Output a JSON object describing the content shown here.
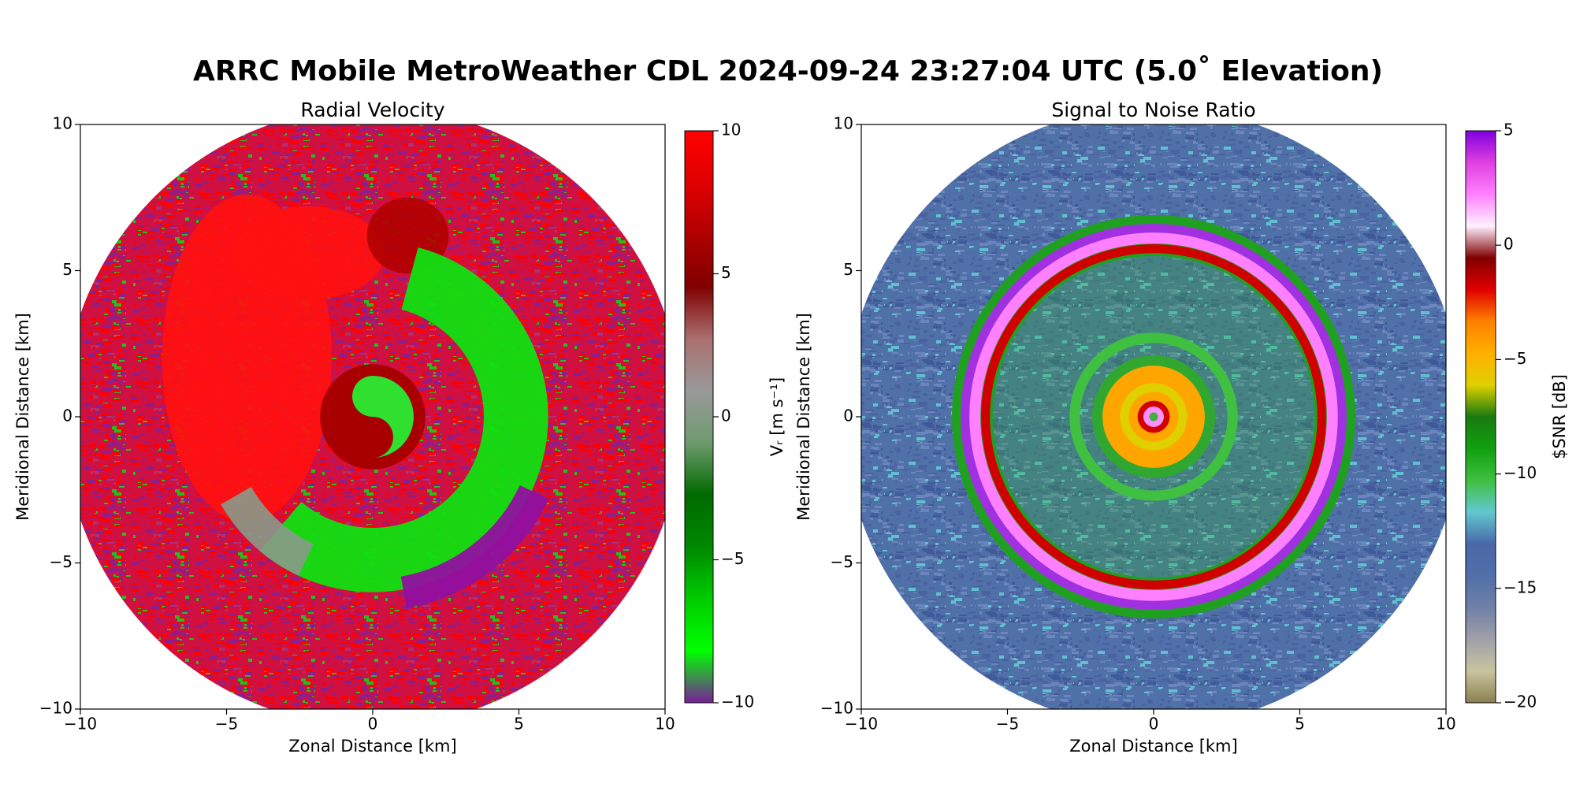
{
  "title": "ARRC Mobile MetroWeather CDL 2024-09-24 23:27:04 UTC (5.0˚ Elevation)",
  "chart_data": [
    {
      "type": "heatmap",
      "title": "Radial Velocity",
      "xlabel": "Zonal Distance [km]",
      "ylabel": "Meridional Distance [km]",
      "xlim": [
        -10,
        10
      ],
      "ylim": [
        -10,
        10
      ],
      "xticks": [
        {
          "value": -10,
          "label": "−10"
        },
        {
          "value": -5,
          "label": "−5"
        },
        0,
        5,
        10
      ],
      "yticks": [
        {
          "value": -10,
          "label": "−10"
        },
        {
          "value": -5,
          "label": "−5"
        },
        0,
        5,
        10
      ],
      "colorbar": {
        "label": "Vᵣ [m s⁻¹]",
        "lim": [
          -10,
          10
        ],
        "ticks": [
          {
            "value": -10,
            "label": "−10"
          },
          {
            "value": -5,
            "label": "−5"
          },
          0,
          5,
          10
        ],
        "colors": [
          "#7a1f9a",
          "#00ff00",
          "#00cc00",
          "#008800",
          "#006a00",
          "#6f9a6f",
          "#999999",
          "#aa6f6f",
          "#800000",
          "#b00000",
          "#e00000",
          "#ff0000"
        ]
      }
    },
    {
      "type": "heatmap",
      "title": "Signal to Noise Ratio",
      "xlabel": "Zonal Distance [km]",
      "ylabel": "Meridional Distance [km]",
      "xlim": [
        -10,
        10
      ],
      "ylim": [
        -10,
        10
      ],
      "xticks": [
        {
          "value": -10,
          "label": "−10"
        },
        {
          "value": -5,
          "label": "−5"
        },
        0,
        5,
        10
      ],
      "yticks": [
        {
          "value": -10,
          "label": "−10"
        },
        {
          "value": -5,
          "label": "−5"
        },
        0,
        5,
        10
      ],
      "colorbar": {
        "label": "$SNR [dB]",
        "lim": [
          -20,
          5
        ],
        "ticks": [
          {
            "value": -20,
            "label": "−20"
          },
          {
            "value": -15,
            "label": "−15"
          },
          {
            "value": -10,
            "label": "−10"
          },
          {
            "value": -5,
            "label": "−5"
          },
          0,
          5
        ],
        "colors": [
          "#8a8050",
          "#c8c4a0",
          "#a0a0a8",
          "#7080a8",
          "#5070a8",
          "#4a68a8",
          "#60c8d0",
          "#40c040",
          "#10a010",
          "#1a7a10",
          "#e0d000",
          "#ffb000",
          "#ff8000",
          "#e00000",
          "#800000",
          "#fff0ff",
          "#ff80ff",
          "#e040e0",
          "#8000e0"
        ]
      }
    }
  ]
}
